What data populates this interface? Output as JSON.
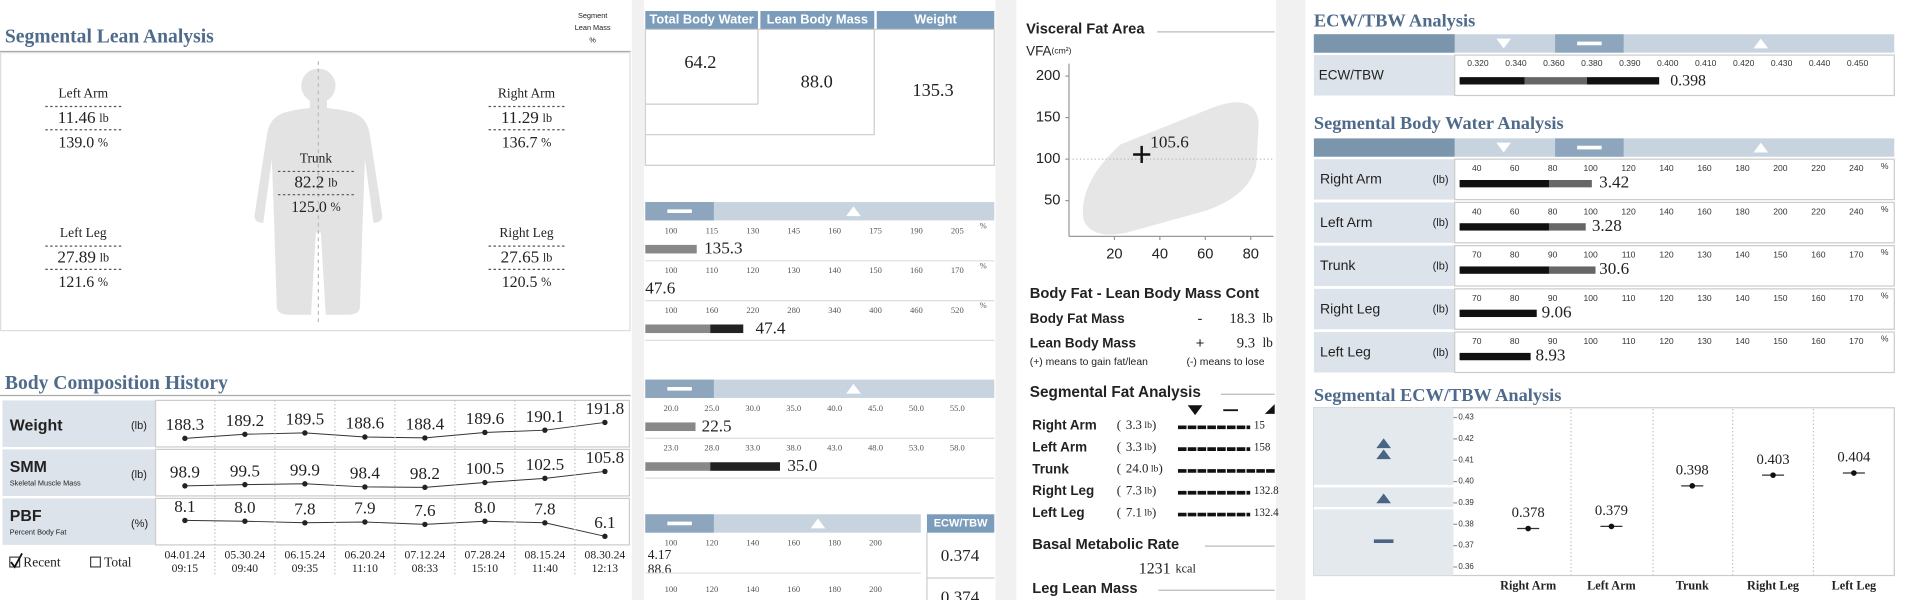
{
  "segmental_lean": {
    "title": "Segmental Lean Analysis",
    "corner_label": [
      "Segment",
      "Lean Mass",
      "%"
    ],
    "mass_unit": "lb",
    "percent_unit": "%",
    "segments": [
      {
        "name": "Left Arm",
        "mass": "11.46",
        "percent": "139.0"
      },
      {
        "name": "Right Arm",
        "mass": "11.29",
        "percent": "136.7"
      },
      {
        "name": "Trunk",
        "mass": "82.2",
        "percent": "125.0"
      },
      {
        "name": "Left Leg",
        "mass": "27.89",
        "percent": "121.6"
      },
      {
        "name": "Right Leg",
        "mass": "27.65",
        "percent": "120.5"
      }
    ]
  },
  "history": {
    "title": "Body Composition History",
    "rows": [
      {
        "label": "Weight",
        "unit": "(lb)",
        "values": [
          "188.3",
          "189.2",
          "189.5",
          "188.6",
          "188.4",
          "189.6",
          "190.1",
          "191.8"
        ]
      },
      {
        "label": "SMM",
        "sublabel": "Skeletal Muscle Mass",
        "unit": "(lb)",
        "values": [
          "98.9",
          "99.5",
          "99.9",
          "98.4",
          "98.2",
          "100.5",
          "102.5",
          "105.8"
        ]
      },
      {
        "label": "PBF",
        "sublabel": "Percent Body Fat",
        "unit": "(%)",
        "values": [
          "8.1",
          "8.0",
          "7.8",
          "7.9",
          "7.6",
          "8.0",
          "7.8",
          "6.1"
        ]
      }
    ],
    "dates": [
      {
        "date": "04.01.24",
        "time": "09:15"
      },
      {
        "date": "05.30.24",
        "time": "09:40"
      },
      {
        "date": "06.15.24",
        "time": "09:35"
      },
      {
        "date": "06.20.24",
        "time": "11:10"
      },
      {
        "date": "07.12.24",
        "time": "08:33"
      },
      {
        "date": "07.28.24",
        "time": "15:10"
      },
      {
        "date": "08.15.24",
        "time": "11:40"
      },
      {
        "date": "08.30.24",
        "time": "12:13"
      }
    ],
    "options": [
      {
        "label": "Recent",
        "checked": true
      },
      {
        "label": "Total",
        "checked": false
      }
    ]
  },
  "composition": {
    "headers": [
      "Total Body Water",
      "Lean Body Mass",
      "Weight"
    ],
    "values": [
      "64.2",
      "88.0",
      "135.3"
    ]
  },
  "analysis_bars": {
    "groups": [
      {
        "unit": "%",
        "rows": [
          {
            "ticks": [
              "100",
              "115",
              "130",
              "145",
              "160",
              "175",
              "190",
              "205"
            ],
            "values": [
              "135.3"
            ]
          },
          {
            "ticks": [
              "100",
              "110",
              "120",
              "130",
              "140",
              "150",
              "160",
              "170"
            ],
            "values": [
              "47.6"
            ]
          },
          {
            "ticks": [
              "100",
              "160",
              "220",
              "280",
              "340",
              "400",
              "460",
              "520"
            ],
            "values": [
              "47.4"
            ]
          }
        ]
      },
      {
        "rows": [
          {
            "ticks": [
              "20.0",
              "25.0",
              "30.0",
              "35.0",
              "40.0",
              "45.0",
              "50.0",
              "55.0"
            ],
            "values": [
              "22.5"
            ]
          },
          {
            "ticks": [
              "23.0",
              "28.0",
              "33.0",
              "38.0",
              "43.0",
              "48.0",
              "53.0",
              "58.0"
            ],
            "values": [
              "35.0"
            ]
          }
        ]
      },
      {
        "rows": [
          {
            "ticks": [
              "100",
              "120",
              "140",
              "160",
              "180",
              "200"
            ],
            "values": [
              "4.17",
              "88.6"
            ]
          },
          {
            "ticks": [
              "100",
              "120",
              "140",
              "160",
              "180",
              "200"
            ],
            "values": []
          }
        ]
      }
    ],
    "ecw_column": {
      "header": "ECW/TBW",
      "values": [
        "0.374",
        "0.374"
      ]
    }
  },
  "visceral_fat": {
    "title": "Visceral Fat Area",
    "y_label": "VFA",
    "y_unit": "(cm²)",
    "xlim": [
      0,
      90
    ],
    "xticks": [
      20,
      40,
      60,
      80
    ],
    "ylim": [
      7,
      215
    ],
    "yticks": [
      50,
      100,
      150,
      200
    ],
    "point": {
      "x": 32,
      "y": 105.6
    }
  },
  "fat_lean_control": {
    "title": "Body Fat - Lean Body Mass Cont",
    "rows": [
      {
        "label": "Body Fat Mass",
        "sign": "-",
        "value": "18.3",
        "unit": "lb"
      },
      {
        "label": "Lean Body Mass",
        "sign": "+",
        "value": "9.3",
        "unit": "lb"
      }
    ],
    "notes": [
      "(+) means to gain fat/lean",
      "(-) means to lose"
    ]
  },
  "segmental_fat": {
    "title": "Segmental Fat Analysis",
    "brackets": [
      "(",
      ")"
    ],
    "unit": "lb",
    "rows": [
      {
        "name": "Right Arm",
        "mass": "3.3",
        "percent": "15"
      },
      {
        "name": "Left Arm",
        "mass": "3.3",
        "percent": "158"
      },
      {
        "name": "Trunk",
        "mass": "24.0"
      },
      {
        "name": "Right Leg",
        "mass": "7.3",
        "percent": "132.8"
      },
      {
        "name": "Left Leg",
        "mass": "7.1",
        "percent": "132.4"
      }
    ]
  },
  "bmr": {
    "title": "Basal Metabolic Rate",
    "value": "1231",
    "unit": "kcal"
  },
  "leg_lean": {
    "title": "Leg Lean Mass"
  },
  "ecw_tbw": {
    "title": "ECW/TBW Analysis",
    "row_label": "ECW/TBW",
    "ticks": [
      "0.320",
      "0.340",
      "0.360",
      "0.380",
      "0.390",
      "0.400",
      "0.410",
      "0.420",
      "0.430",
      "0.440",
      "0.450"
    ],
    "value": "0.398"
  },
  "segmental_water": {
    "title": "Segmental Body Water Analysis",
    "unit": "(lb)",
    "percent_mark": "%",
    "rows": [
      {
        "name": "Right Arm",
        "ticks": [
          "40",
          "60",
          "80",
          "100",
          "120",
          "140",
          "160",
          "180",
          "200",
          "220",
          "240"
        ],
        "value": "3.42"
      },
      {
        "name": "Left Arm",
        "ticks": [
          "40",
          "60",
          "80",
          "100",
          "120",
          "140",
          "160",
          "180",
          "200",
          "220",
          "240"
        ],
        "value": "3.28"
      },
      {
        "name": "Trunk",
        "ticks": [
          "70",
          "80",
          "90",
          "100",
          "110",
          "120",
          "130",
          "140",
          "150",
          "160",
          "170"
        ],
        "value": "30.6"
      },
      {
        "name": "Right Leg",
        "ticks": [
          "70",
          "80",
          "90",
          "100",
          "110",
          "120",
          "130",
          "140",
          "150",
          "160",
          "170"
        ],
        "value": "9.06"
      },
      {
        "name": "Left Leg",
        "ticks": [
          "70",
          "80",
          "90",
          "100",
          "110",
          "120",
          "130",
          "140",
          "150",
          "160",
          "170"
        ],
        "value": "8.93"
      }
    ]
  },
  "segmental_ecw": {
    "title": "Segmental ECW/TBW Analysis",
    "categories": [
      "Right Arm",
      "Left Arm",
      "Trunk",
      "Right Leg",
      "Left Leg"
    ],
    "values": [
      0.378,
      0.379,
      0.398,
      0.403,
      0.404
    ],
    "ylim": [
      0.356,
      0.434
    ],
    "yticks": [
      0.43,
      0.42,
      0.41,
      {
        "value": 0.4,
        "label": "0.40"
      },
      0.39,
      0.38,
      0.37,
      0.36
    ]
  }
}
